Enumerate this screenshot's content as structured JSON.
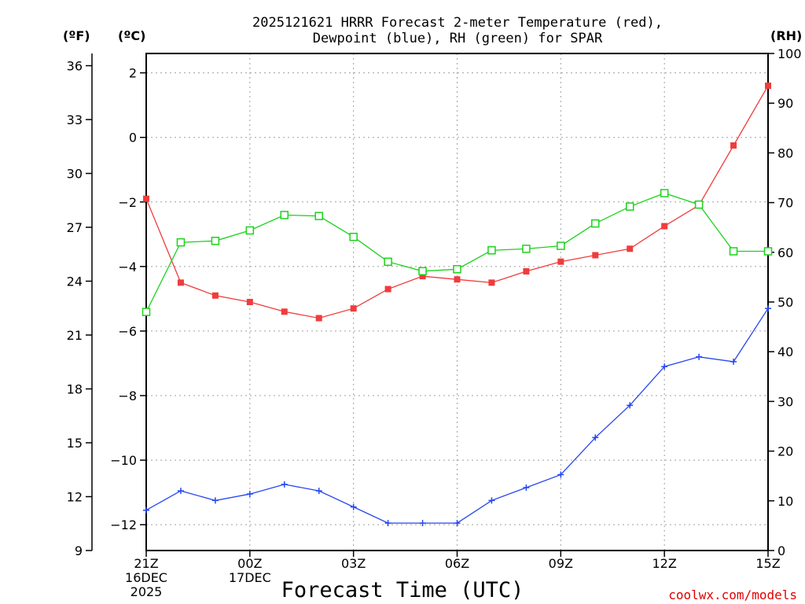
{
  "chart_data": {
    "type": "line",
    "title_lines": [
      "2025121621 HRRR Forecast 2-meter Temperature (red),",
      "Dewpoint (blue), RH (green) for SPAR"
    ],
    "xlabel": "Forecast Time (UTC)",
    "credit": "coolwx.com/models",
    "units": {
      "fahrenheit": "(ºF)",
      "celsius": "(ºC)",
      "rh": "(RH)"
    },
    "x": [
      0,
      1,
      2,
      3,
      4,
      5,
      6,
      7,
      8,
      9,
      10,
      11,
      12,
      13,
      14,
      15,
      16,
      17,
      18
    ],
    "x_range": [
      0,
      18
    ],
    "x_ticks": [
      {
        "x": 0,
        "lines": [
          "21Z",
          "16DEC",
          "2025"
        ]
      },
      {
        "x": 3,
        "lines": [
          "00Z",
          "17DEC"
        ]
      },
      {
        "x": 6,
        "lines": [
          "03Z"
        ]
      },
      {
        "x": 9,
        "lines": [
          "06Z"
        ]
      },
      {
        "x": 12,
        "lines": [
          "09Z"
        ]
      },
      {
        "x": 15,
        "lines": [
          "12Z"
        ]
      },
      {
        "x": 18,
        "lines": [
          "15Z"
        ]
      }
    ],
    "celsius_axis": {
      "range": [
        -12.8,
        2.6
      ],
      "ticks": [
        2,
        0,
        -2,
        -4,
        -6,
        -8,
        -10,
        -12
      ],
      "tick_labels": [
        "2",
        "0",
        "−2",
        "−4",
        "−6",
        "−8",
        "−10",
        "−12"
      ]
    },
    "fahrenheit_axis": {
      "range": [
        9,
        36.68
      ],
      "ticks": [
        9,
        12,
        15,
        18,
        21,
        24,
        27,
        30,
        33,
        36
      ]
    },
    "rh_axis": {
      "range": [
        0,
        100
      ],
      "ticks": [
        0,
        10,
        20,
        30,
        40,
        50,
        60,
        70,
        80,
        90,
        100
      ]
    },
    "series": [
      {
        "name": "2-meter Temperature",
        "axis": "celsius",
        "color": "#f03c3c",
        "marker": "filled-square",
        "values": [
          -1.9,
          -4.5,
          -4.9,
          -5.1,
          -5.4,
          -5.6,
          -5.3,
          -4.7,
          -4.3,
          -4.4,
          -4.5,
          -4.15,
          -3.85,
          -3.65,
          -3.45,
          -2.75,
          -2.1,
          -0.25,
          1.6
        ]
      },
      {
        "name": "Dewpoint",
        "axis": "celsius",
        "color": "#2646f0",
        "marker": "plus",
        "values": [
          -11.55,
          -10.95,
          -11.25,
          -11.05,
          -10.75,
          -10.95,
          -11.45,
          -11.95,
          -11.95,
          -11.95,
          -11.25,
          -10.85,
          -10.45,
          -9.3,
          -8.3,
          -7.1,
          -6.8,
          -6.95,
          -5.3
        ]
      },
      {
        "name": "RH",
        "axis": "rh",
        "color": "#1cd21c",
        "marker": "open-square",
        "values": [
          48,
          62,
          62.3,
          64.4,
          67.5,
          67.3,
          63.1,
          58.1,
          56.2,
          56.6,
          60.4,
          60.7,
          61.3,
          65.8,
          69.2,
          71.9,
          69.6,
          60.2,
          60.2
        ]
      }
    ]
  }
}
